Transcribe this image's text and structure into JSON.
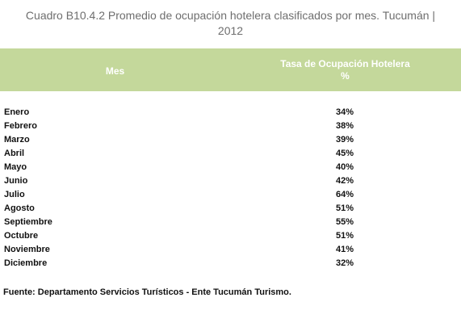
{
  "title": {
    "line1": "Cuadro B10.4.2 Promedio de ocupación hotelera clasificados por mes. Tucumán |",
    "line2": "2012"
  },
  "header": {
    "col1": "Mes",
    "col2_line1": "Tasa de Ocupación Hotelera",
    "col2_line2": "%"
  },
  "rows": [
    {
      "mes": "Enero",
      "val": "34%"
    },
    {
      "mes": "Febrero",
      "val": "38%"
    },
    {
      "mes": "Marzo",
      "val": "39%"
    },
    {
      "mes": "Abril",
      "val": "45%"
    },
    {
      "mes": "Mayo",
      "val": "40%"
    },
    {
      "mes": "Junio",
      "val": "42%"
    },
    {
      "mes": "Julio",
      "val": "64%"
    },
    {
      "mes": "Agosto",
      "val": "51%"
    },
    {
      "mes": "Septiembre",
      "val": "55%"
    },
    {
      "mes": "Octubre",
      "val": "51%"
    },
    {
      "mes": "Noviembre",
      "val": "41%"
    },
    {
      "mes": "Diciembre",
      "val": "32%"
    }
  ],
  "source": "Fuente: Departamento Servicios Turísticos - Ente Tucumán Turismo.",
  "colors": {
    "header_bg": "#c4d89b",
    "header_text": "#ffffff",
    "title_text": "#6e6e6e"
  }
}
